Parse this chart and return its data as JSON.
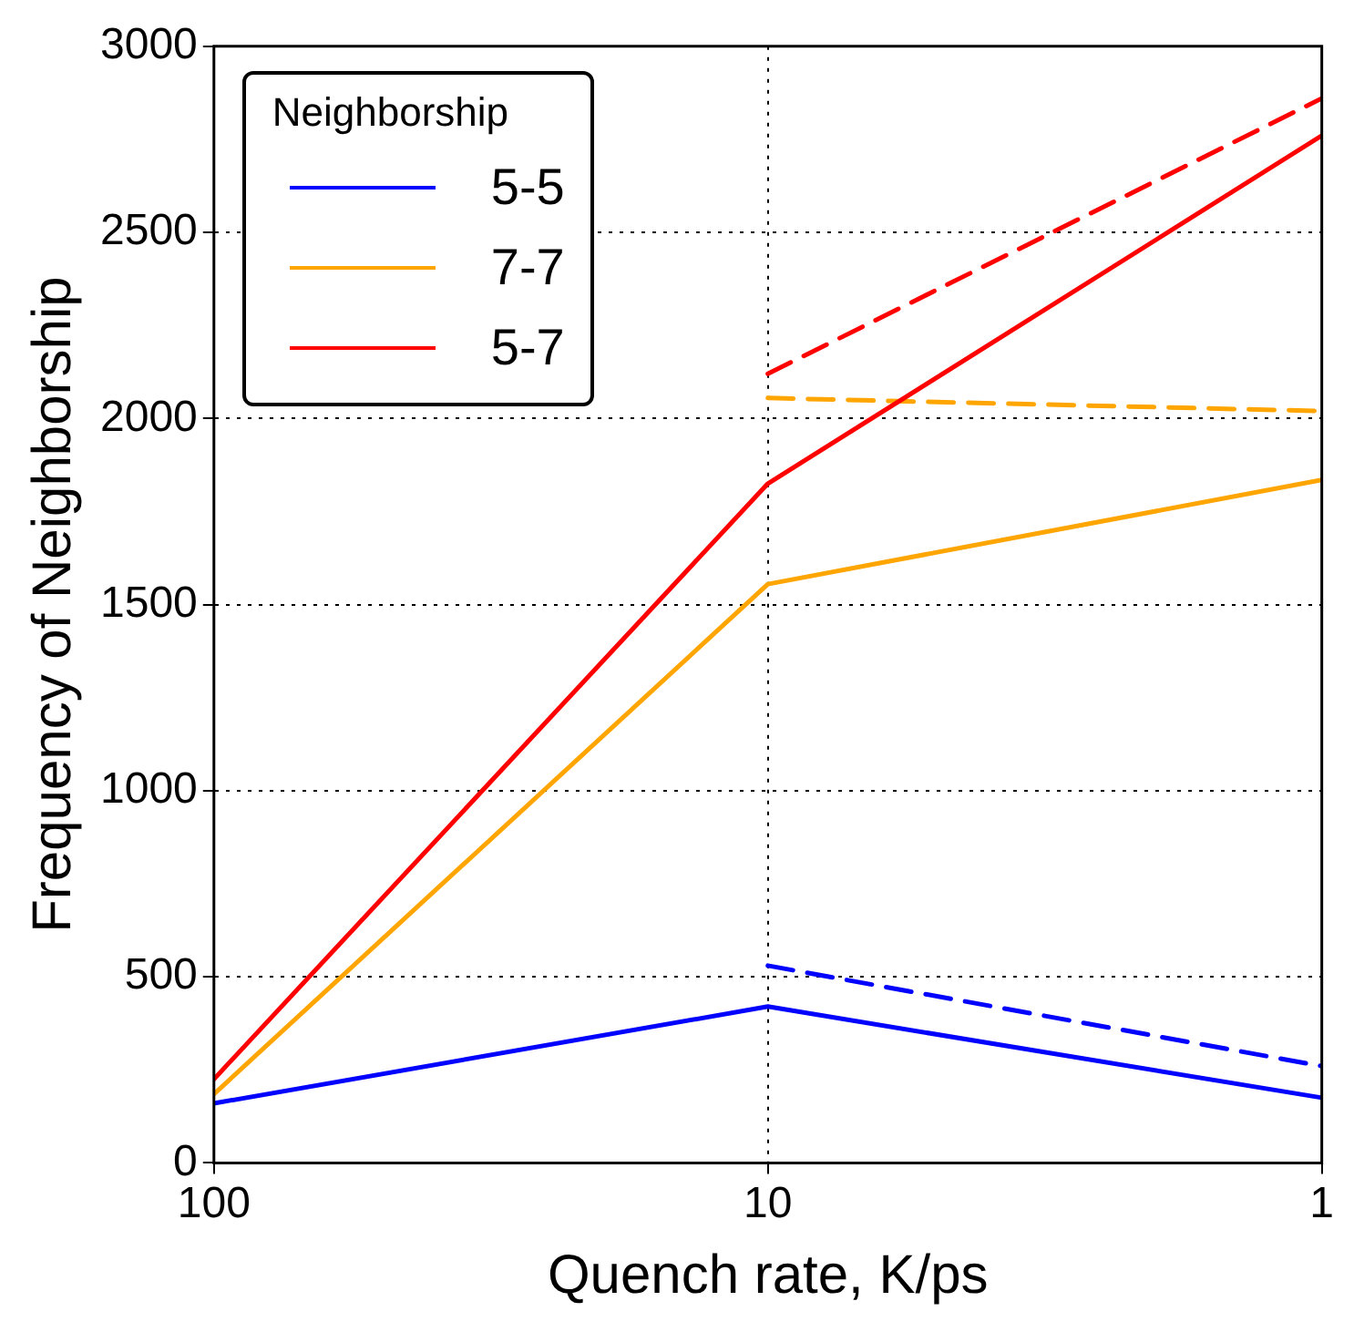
{
  "chart_data": {
    "type": "line",
    "xlabel": "Quench rate, K/ps",
    "ylabel": "Frequency of Neighborship",
    "legend_title": "Neighborship",
    "x": [
      100,
      10,
      1
    ],
    "series": [
      {
        "name": "5-5",
        "color": "#0000ff",
        "values": [
          160,
          420,
          175
        ]
      },
      {
        "name": "7-7",
        "color": "#ffa500",
        "values": [
          185,
          1555,
          1835
        ]
      },
      {
        "name": "5-7",
        "color": "#ff0000",
        "values": [
          225,
          1825,
          2760
        ]
      },
      {
        "color": "#0000ff",
        "values": [
          null,
          530,
          260
        ],
        "line_style": "dashed"
      },
      {
        "color": "#ffa500",
        "values": [
          null,
          2055,
          2020
        ],
        "line_style": "dashed"
      },
      {
        "color": "#ff0000",
        "values": [
          null,
          2120,
          2860
        ],
        "line_style": "dashed"
      }
    ],
    "log": "x",
    "xlim": [
      100,
      1
    ],
    "xticks": [
      100,
      10,
      1
    ],
    "ylim": [
      0,
      3000
    ],
    "yticks": [
      0,
      500,
      1000,
      1500,
      2000,
      2500,
      3000
    ],
    "grid": true,
    "legend": "top left",
    "marker": "none",
    "line_style": "solid"
  }
}
